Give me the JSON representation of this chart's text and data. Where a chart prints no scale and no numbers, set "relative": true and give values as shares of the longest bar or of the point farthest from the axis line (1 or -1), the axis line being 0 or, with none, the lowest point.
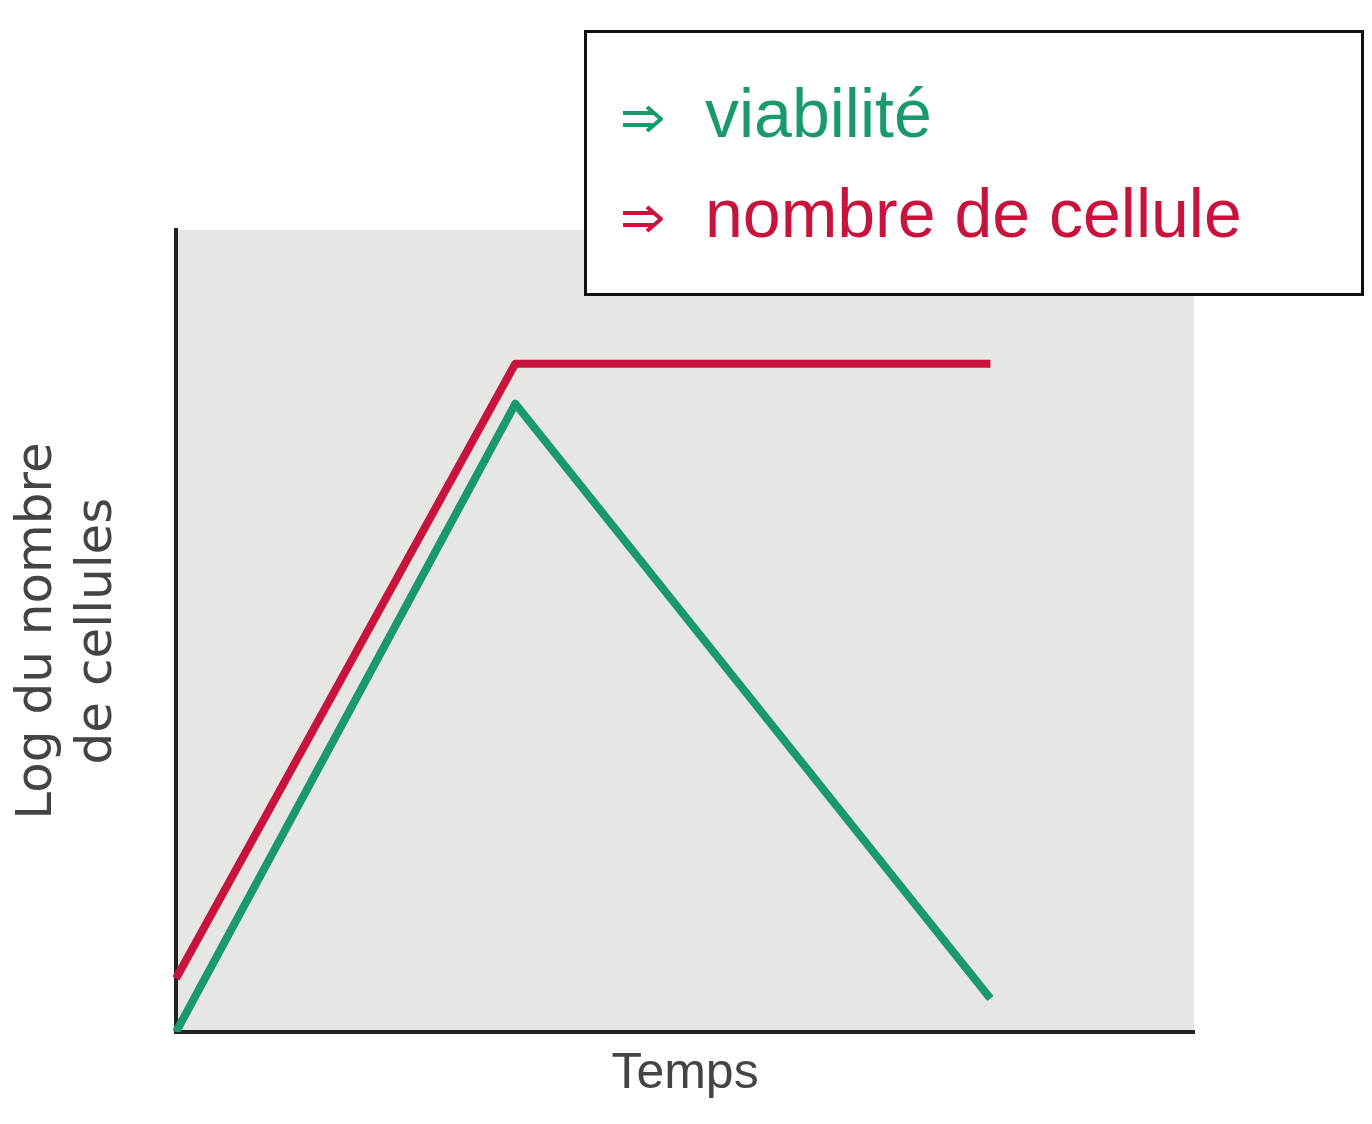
{
  "chart_data": {
    "type": "line",
    "relative": true,
    "xlabel": "Temps",
    "ylabel": "Log du nombre\nde cellules",
    "categories": [
      null,
      null,
      null,
      null,
      null,
      null,
      null,
      null,
      null,
      null,
      null,
      null,
      null,
      null,
      null,
      null
    ],
    "series": [
      {
        "name": "viabilité",
        "color": "#1a9a6a",
        "values": [
          0,
          null,
          null,
          null,
          null,
          0.94,
          null,
          null,
          null,
          null,
          null,
          null,
          0.05,
          null,
          null,
          null
        ]
      },
      {
        "name": "nombre de cellule",
        "color": "#c8143c",
        "values": [
          0.08,
          null,
          null,
          null,
          null,
          1,
          null,
          null,
          null,
          null,
          null,
          null,
          1,
          null,
          null,
          null
        ]
      }
    ],
    "legend": "top right",
    "grid": false,
    "marker": "none",
    "line_style": "solid"
  }
}
